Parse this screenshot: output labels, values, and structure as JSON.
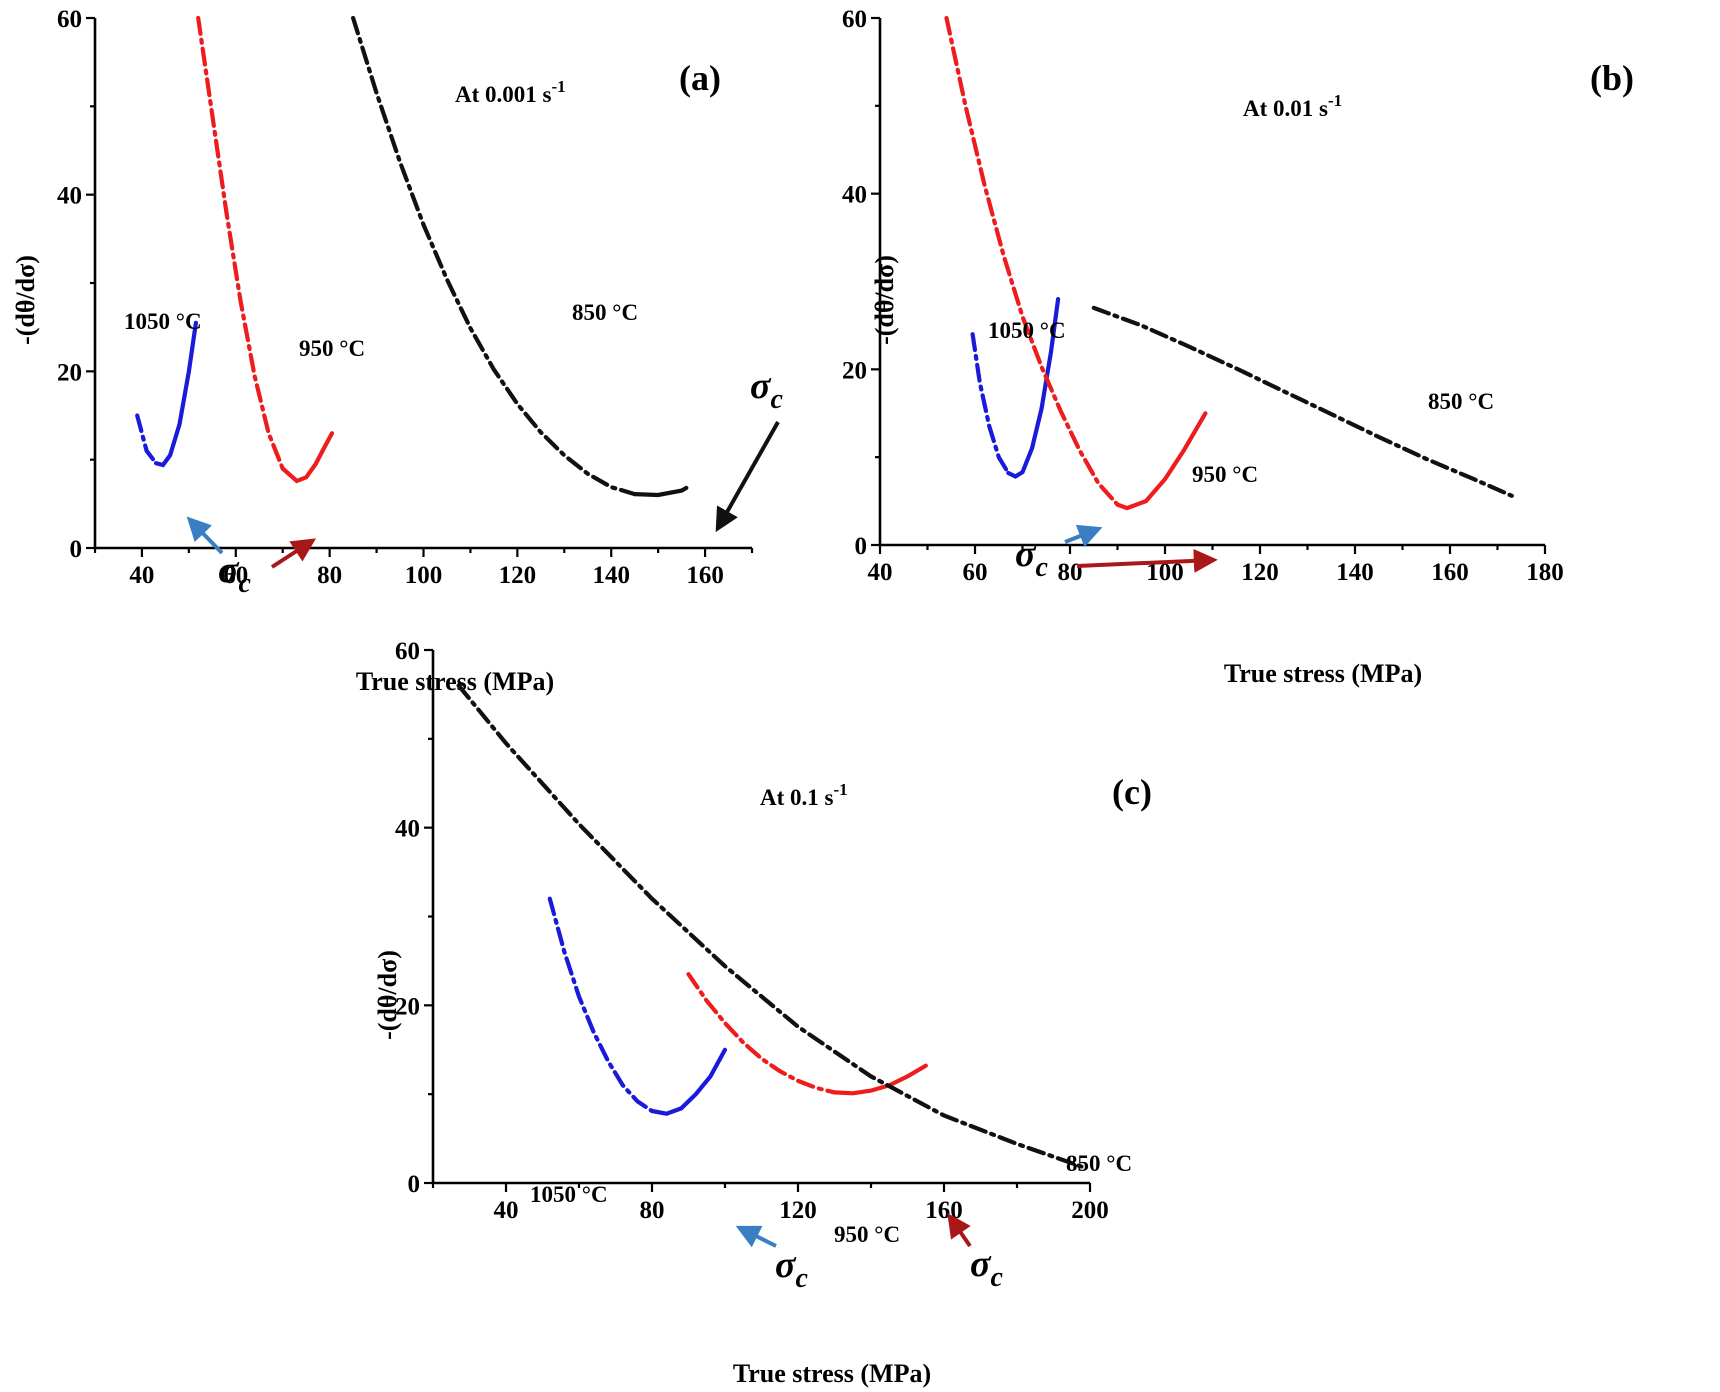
{
  "chart_data": [
    {
      "type": "line",
      "panel": "(a)",
      "strain_rate_label": "At 0.001 s",
      "strain_rate_exponent": "-1",
      "xlabel": "True stress (MPa)",
      "ylabel": "-(dθ/dσ)",
      "xlim": [
        30,
        170
      ],
      "ylim": [
        0,
        60
      ],
      "xticks": [
        40,
        60,
        80,
        100,
        120,
        140,
        160
      ],
      "yticks": [
        0,
        20,
        40,
        60
      ],
      "critical_label": "σ",
      "critical_subscript": "c",
      "series": [
        {
          "name": "1050 °C",
          "color": "#1a1adb",
          "x": [
            39,
            41,
            43,
            44.5,
            46,
            48,
            50,
            51.5
          ],
          "y": [
            15,
            11,
            9.6,
            9.4,
            10.5,
            14,
            20,
            25.5
          ]
        },
        {
          "name": "950 °C",
          "color": "#ee1c1c",
          "x": [
            52,
            55,
            58,
            61,
            64,
            67,
            70,
            73,
            75,
            77,
            79,
            80.5
          ],
          "y": [
            60,
            49,
            38,
            28,
            19.5,
            13,
            9,
            7.6,
            8,
            9.5,
            11.5,
            13
          ]
        },
        {
          "name": "850 °C",
          "color": "#111111",
          "x": [
            85,
            90,
            95,
            100,
            105,
            110,
            115,
            120,
            125,
            130,
            135,
            140,
            145,
            150,
            155,
            156
          ],
          "y": [
            60,
            51.5,
            43.7,
            36.6,
            30.4,
            24.9,
            20.2,
            16.3,
            13.1,
            10.5,
            8.4,
            6.9,
            6.1,
            6.0,
            6.5,
            6.8
          ]
        }
      ],
      "critical_points": [
        {
          "series": "1050 °C",
          "x": 44.5,
          "y": 9.4,
          "arrow_color": "#3a7fc4"
        },
        {
          "series": "950 °C",
          "x": 73,
          "y": 7.6,
          "arrow_color": "#a81818"
        },
        {
          "series": "850 °C",
          "x": 150,
          "y": 6.0,
          "arrow_color": "#111111"
        }
      ]
    },
    {
      "type": "line",
      "panel": "(b)",
      "strain_rate_label": "At 0.01 s",
      "strain_rate_exponent": "-1",
      "xlabel": "True stress (MPa)",
      "ylabel": "-(dθ/dσ)",
      "xlim": [
        40,
        180
      ],
      "ylim": [
        0,
        60
      ],
      "xticks": [
        40,
        60,
        80,
        100,
        120,
        140,
        160,
        180
      ],
      "yticks": [
        0,
        20,
        40,
        60
      ],
      "critical_label": "σ",
      "critical_subscript": "c",
      "series": [
        {
          "name": "1050 °C",
          "color": "#1a1adb",
          "x": [
            59.5,
            61,
            63,
            65,
            67,
            68.5,
            70,
            72,
            74,
            76,
            77.5
          ],
          "y": [
            24,
            18.5,
            13.5,
            10,
            8.2,
            7.8,
            8.3,
            11,
            15.5,
            22,
            28
          ]
        },
        {
          "name": "950 °C",
          "color": "#ee1c1c",
          "x": [
            54,
            58,
            62,
            66,
            70,
            74,
            78,
            82,
            86,
            90,
            92,
            96,
            100,
            104,
            108.5
          ],
          "y": [
            60,
            50,
            41,
            33,
            26,
            20.3,
            15.3,
            10.8,
            7,
            4.6,
            4.2,
            5,
            7.5,
            10.8,
            15
          ]
        },
        {
          "name": "850 °C",
          "color": "#111111",
          "x": [
            85,
            95,
            105,
            115,
            125,
            135,
            145,
            155,
            165,
            173
          ],
          "y": [
            27,
            25,
            22.6,
            20.1,
            17.5,
            14.9,
            12.3,
            9.8,
            7.5,
            5.6
          ]
        }
      ],
      "critical_points": [
        {
          "series": "1050 °C",
          "x": 68.5,
          "y": 7.8,
          "arrow_color": "#3a7fc4"
        },
        {
          "series": "950 °C",
          "x": 92,
          "y": 4.2,
          "arrow_color": "#a81818"
        }
      ]
    },
    {
      "type": "line",
      "panel": "(c)",
      "strain_rate_label": "At 0.1 s",
      "strain_rate_exponent": "-1",
      "xlabel": "True stress (MPa)",
      "ylabel": "-(dθ/dσ)",
      "xlim": [
        20,
        200
      ],
      "ylim": [
        0,
        60
      ],
      "xticks": [
        40,
        80,
        120,
        160,
        200
      ],
      "yticks": [
        0,
        20,
        40,
        60
      ],
      "critical_label": "σ",
      "critical_subscript": "c",
      "series": [
        {
          "name": "1050 °C",
          "color": "#1a1adb",
          "x": [
            52,
            56,
            60,
            64,
            68,
            72,
            76,
            80,
            84,
            88,
            92,
            96,
            100
          ],
          "y": [
            32,
            26,
            21,
            17,
            13.7,
            11,
            9.2,
            8.1,
            7.8,
            8.4,
            10,
            12,
            15
          ]
        },
        {
          "name": "950 °C",
          "color": "#ee1c1c",
          "x": [
            90,
            95,
            100,
            105,
            110,
            115,
            120,
            125,
            130,
            135,
            140,
            145,
            150,
            155
          ],
          "y": [
            23.5,
            20.5,
            18,
            15.8,
            14,
            12.6,
            11.5,
            10.7,
            10.2,
            10.1,
            10.4,
            11,
            12,
            13.2
          ]
        },
        {
          "name": "850 °C",
          "color": "#111111",
          "x": [
            27,
            40,
            60,
            80,
            100,
            120,
            140,
            160,
            180,
            198
          ],
          "y": [
            56,
            49.5,
            40.4,
            32,
            24.4,
            17.6,
            12,
            7.6,
            4.4,
            1.8
          ]
        }
      ],
      "critical_points": [
        {
          "series": "1050 °C",
          "x": 84,
          "y": 7.8,
          "arrow_color": "#3a7fc4"
        },
        {
          "series": "950 °C",
          "x": 135,
          "y": 10.1,
          "arrow_color": "#a81818"
        }
      ]
    }
  ]
}
